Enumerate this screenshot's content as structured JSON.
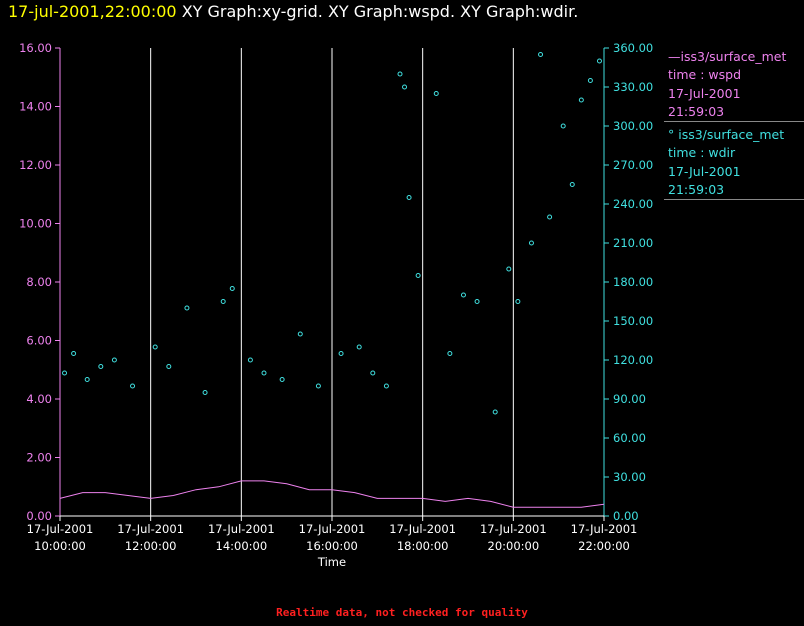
{
  "title": {
    "time": "17-jul-2001,22:00:00",
    "parts": [
      "XY Graph:xy-grid.",
      "XY Graph:wspd.",
      "XY Graph:wdir."
    ]
  },
  "legend": [
    {
      "symbol": "line",
      "lines": [
        "iss3/surface_met",
        "time : wspd",
        "17-Jul-2001",
        "21:59:03"
      ],
      "color": "#ee82ee"
    },
    {
      "symbol": "circle",
      "lines": [
        "iss3/surface_met",
        "time : wdir",
        "17-Jul-2001",
        "21:59:03"
      ],
      "color": "#40e0e0"
    }
  ],
  "footer_note": "Realtime data, not checked for quality",
  "chart_data": {
    "type": "scatter",
    "xlabel": "Time",
    "x_ticks": [
      [
        "17-Jul-2001",
        "10:00:00"
      ],
      [
        "17-Jul-2001",
        "12:00:00"
      ],
      [
        "17-Jul-2001",
        "14:00:00"
      ],
      [
        "17-Jul-2001",
        "16:00:00"
      ],
      [
        "17-Jul-2001",
        "18:00:00"
      ],
      [
        "17-Jul-2001",
        "20:00:00"
      ],
      [
        "17-Jul-2001",
        "22:00:00"
      ]
    ],
    "x_tick_hours": [
      10,
      12,
      14,
      16,
      18,
      20,
      22
    ],
    "xlim_hours": [
      10,
      22
    ],
    "grid_vertical": true,
    "y_left": {
      "ticks": [
        "0.00",
        "2.00",
        "4.00",
        "6.00",
        "8.00",
        "10.00",
        "12.00",
        "14.00",
        "16.00"
      ],
      "lim": [
        0,
        16
      ],
      "color": "#ee82ee"
    },
    "y_right": {
      "ticks": [
        "0.00",
        "30.00",
        "60.00",
        "90.00",
        "120.00",
        "150.00",
        "180.00",
        "210.00",
        "240.00",
        "270.00",
        "300.00",
        "330.00",
        "360.00"
      ],
      "lim": [
        0,
        360
      ],
      "color": "#40e0e0"
    },
    "series": [
      {
        "name": "iss3/surface_met time : wspd",
        "axis": "left",
        "style": "line",
        "color": "#ee82ee",
        "x_hours": [
          10.0,
          10.5,
          11.0,
          11.5,
          12.0,
          12.5,
          13.0,
          13.5,
          14.0,
          14.5,
          15.0,
          15.5,
          16.0,
          16.5,
          17.0,
          17.5,
          18.0,
          18.5,
          19.0,
          19.5,
          20.0,
          20.5,
          21.0,
          21.5,
          22.0
        ],
        "values": [
          0.6,
          0.8,
          0.8,
          0.7,
          0.6,
          0.7,
          0.9,
          1.0,
          1.2,
          1.2,
          1.1,
          0.9,
          0.9,
          0.8,
          0.6,
          0.6,
          0.6,
          0.5,
          0.6,
          0.5,
          0.3,
          0.3,
          0.3,
          0.3,
          0.4
        ]
      },
      {
        "name": "iss3/surface_met time : wdir",
        "axis": "right",
        "style": "points",
        "color": "#40e0e0",
        "x_hours": [
          10.1,
          10.3,
          10.6,
          10.9,
          11.2,
          11.6,
          12.1,
          12.4,
          12.8,
          13.2,
          13.6,
          13.8,
          14.2,
          14.5,
          14.9,
          15.3,
          15.7,
          16.2,
          16.6,
          16.9,
          17.2,
          17.5,
          17.6,
          17.7,
          17.9,
          18.3,
          18.6,
          18.9,
          19.2,
          19.6,
          19.9,
          20.1,
          20.4,
          20.6,
          20.8,
          21.1,
          21.3,
          21.5,
          21.7,
          21.9
        ],
        "values": [
          110,
          125,
          105,
          115,
          120,
          100,
          130,
          115,
          160,
          95,
          165,
          175,
          120,
          110,
          105,
          140,
          100,
          125,
          130,
          110,
          100,
          340,
          330,
          245,
          185,
          325,
          125,
          170,
          165,
          80,
          190,
          165,
          210,
          355,
          230,
          300,
          255,
          320,
          335,
          350
        ]
      }
    ]
  }
}
